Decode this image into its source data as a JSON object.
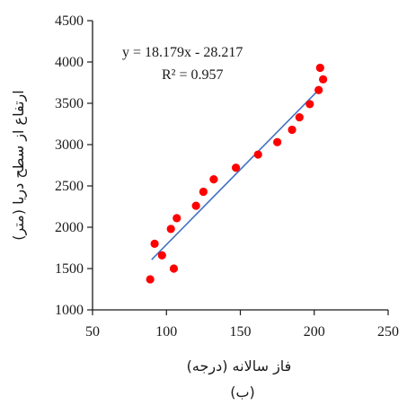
{
  "chart_data": {
    "type": "scatter",
    "xlabel": "فاز سالانه (درجه)",
    "ylabel": "ارتفاع از سطح دریا (متر)",
    "caption": "(ب)",
    "xlim": [
      50,
      250
    ],
    "ylim": [
      1000,
      4500
    ],
    "xticks": [
      50,
      100,
      150,
      200,
      250
    ],
    "yticks": [
      1000,
      1500,
      2000,
      2500,
      3000,
      3500,
      4000,
      4500
    ],
    "grid": false,
    "points": [
      {
        "x": 89,
        "y": 1370
      },
      {
        "x": 92,
        "y": 1800
      },
      {
        "x": 97,
        "y": 1660
      },
      {
        "x": 103,
        "y": 1980
      },
      {
        "x": 105,
        "y": 1500
      },
      {
        "x": 107,
        "y": 2110
      },
      {
        "x": 120,
        "y": 2260
      },
      {
        "x": 125,
        "y": 2430
      },
      {
        "x": 132,
        "y": 2580
      },
      {
        "x": 147,
        "y": 2720
      },
      {
        "x": 162,
        "y": 2880
      },
      {
        "x": 175,
        "y": 3030
      },
      {
        "x": 185,
        "y": 3180
      },
      {
        "x": 190,
        "y": 3330
      },
      {
        "x": 197,
        "y": 3490
      },
      {
        "x": 203,
        "y": 3660
      },
      {
        "x": 204,
        "y": 3930
      },
      {
        "x": 206,
        "y": 3790
      }
    ],
    "point_color": "#ff0000",
    "trendline": {
      "slope": 18.179,
      "intercept": -28.217,
      "x_range": [
        90,
        203
      ],
      "color": "#4472c4",
      "equation": "y = 18.179x - 28.217",
      "r2": "R² = 0.957"
    }
  }
}
